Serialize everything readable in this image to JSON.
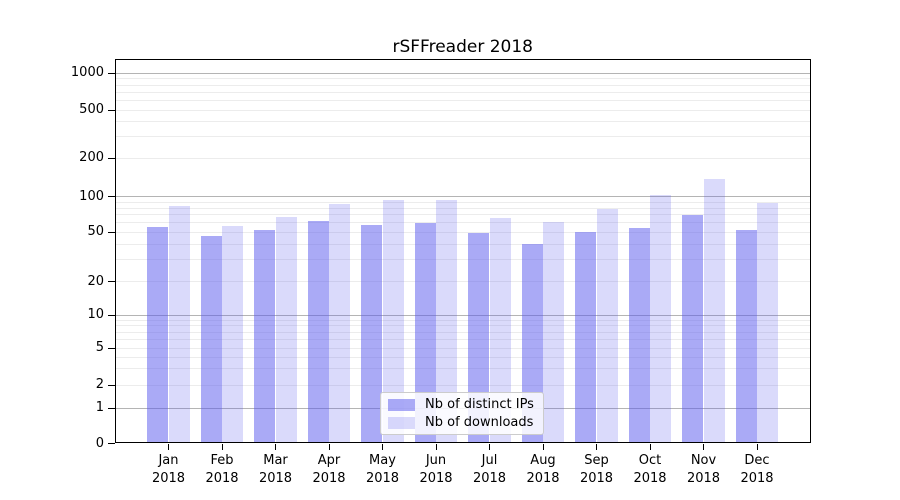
{
  "chart_data": {
    "type": "bar",
    "title": "rSFFreader 2018",
    "categories": [
      "Jan",
      "Feb",
      "Mar",
      "Apr",
      "May",
      "Jun",
      "Jul",
      "Aug",
      "Sep",
      "Oct",
      "Nov",
      "Dec"
    ],
    "x_year": "2018",
    "series": [
      {
        "name": "Nb of distinct IPs",
        "color": "rgba(85,85,238,0.5)",
        "color_hex_on_white": "#aaaaf6",
        "values": [
          55,
          47,
          52,
          62,
          58,
          60,
          49,
          40,
          50,
          54,
          70,
          52
        ]
      },
      {
        "name": "Nb of downloads",
        "color": "rgba(85,85,238,0.22)",
        "color_hex_on_white": "#d9d9f8",
        "values": [
          83,
          56,
          67,
          87,
          94,
          94,
          66,
          61,
          79,
          103,
          137,
          89
        ]
      }
    ],
    "y_ticks": [
      0,
      1,
      2,
      5,
      10,
      20,
      50,
      100,
      200,
      500,
      1000
    ],
    "y_scale": "log-like with 1-2-5 ticks, compressed below 10, zero shown",
    "ylim": [
      0,
      1300
    ],
    "xlabel": "",
    "ylabel": "",
    "grid": "major gray lines at 1,10,100,1000; light minor log lines",
    "legend_position": "lower center"
  },
  "colors": {
    "background": "#ffffff",
    "spine": "#000000",
    "major_grid": "#b4b4b4",
    "minor_grid": "#ececec",
    "legend_border": "#cccccc"
  }
}
